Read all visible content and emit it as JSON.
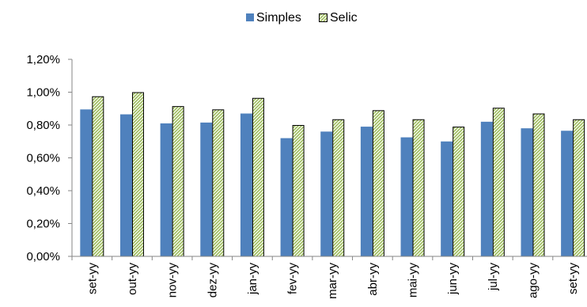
{
  "chart_data": {
    "type": "bar",
    "categories": [
      "set-yy",
      "out-yy",
      "nov-yy",
      "dez-yy",
      "jan-yy",
      "fev-yy",
      "mar-yy",
      "abr-yy",
      "mai-yy",
      "jun-yy",
      "jul-yy",
      "ago-yy",
      "set-yy"
    ],
    "series": [
      {
        "name": "Simples",
        "color": "#4f81bd",
        "values": [
          0.895,
          0.865,
          0.81,
          0.815,
          0.87,
          0.72,
          0.76,
          0.79,
          0.725,
          0.7,
          0.82,
          0.78,
          0.765
        ]
      },
      {
        "name": "Selic",
        "color": "#9bbb59",
        "pattern": "hatched",
        "values": [
          0.975,
          1.0,
          0.915,
          0.895,
          0.965,
          0.8,
          0.835,
          0.89,
          0.835,
          0.79,
          0.905,
          0.87,
          0.835
        ]
      }
    ],
    "y_ticks": [
      "0,00%",
      "0,20%",
      "0,40%",
      "0,60%",
      "0,80%",
      "1,00%",
      "1,20%"
    ],
    "ylim": [
      0,
      1.2
    ],
    "y_unit": "%",
    "legend_position": "top-center",
    "grid": false
  }
}
